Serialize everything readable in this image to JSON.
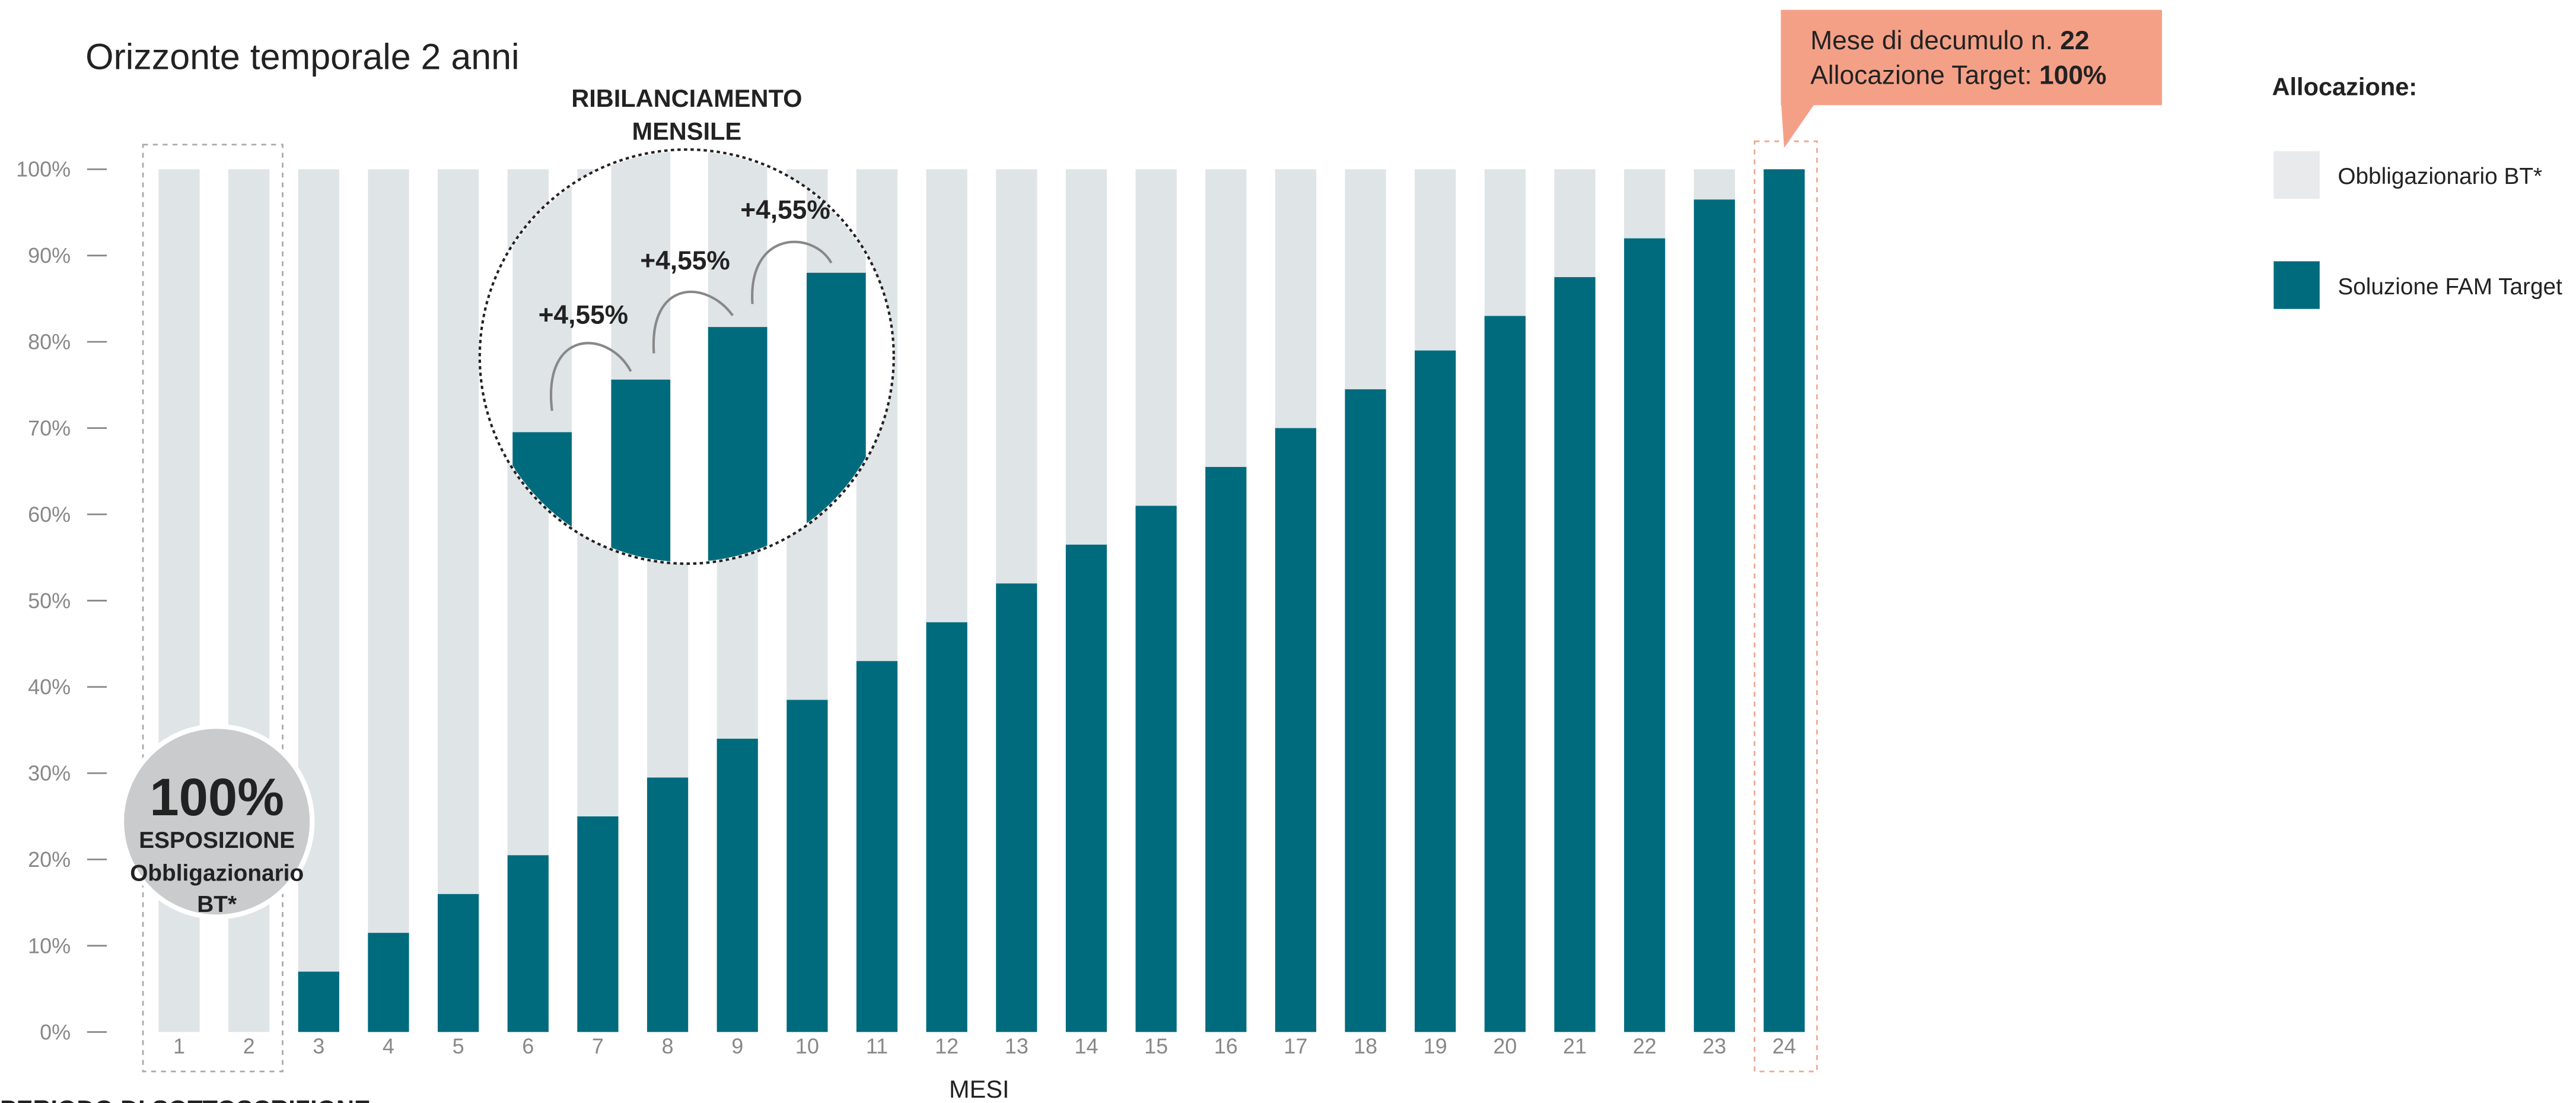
{
  "chart_data": {
    "type": "stacked-bar",
    "subtitle": "Orizzonte temporale 2 anni",
    "x_label": "MESI",
    "footer": "PERIODO DI SOTTOSCRIZIONE",
    "legend_title": "Allocazione:",
    "callout": {
      "line1": "Mese di decumulo n.",
      "month": "22",
      "line2": "Allocazione Target:",
      "target": "100%"
    },
    "zoom_title": [
      "RIBILANCIAMENTO",
      "MENSILE"
    ],
    "zoom_labels": [
      "+4,55%",
      "+4,55%",
      "+4,55%"
    ],
    "badge": {
      "value": "100%",
      "line1": "ESPOSIZIONE",
      "line2": "Obbligazionario",
      "line3": "BT*"
    },
    "categories": [
      "1",
      "2",
      "3",
      "4",
      "5",
      "6",
      "7",
      "8",
      "9",
      "10",
      "11",
      "12",
      "13",
      "14",
      "15",
      "16",
      "17",
      "18",
      "19",
      "20",
      "21",
      "22",
      "23",
      "24"
    ],
    "series": [
      {
        "name": "Soluzione FAM Target",
        "color": "#006b7d",
        "values": [
          0,
          0,
          7,
          11.5,
          16,
          20.5,
          25,
          29.5,
          34,
          38.5,
          43,
          47.5,
          52,
          56.5,
          61,
          65.5,
          70,
          74.5,
          79,
          83,
          87.5,
          92,
          96.5,
          100
        ]
      },
      {
        "name": "Obbligazionario BT*",
        "color": "#dfe4e7",
        "values": [
          100,
          100,
          93,
          88.5,
          84,
          79.5,
          75,
          70.5,
          66,
          61.5,
          57,
          52.5,
          48,
          43.5,
          39,
          34.5,
          30,
          25.5,
          21,
          17,
          12.5,
          8,
          3.5,
          0
        ]
      }
    ],
    "ylim": [
      0,
      100
    ],
    "yticks": [
      {
        "value": 0,
        "label": "0%"
      },
      {
        "value": 10,
        "label": "10%"
      },
      {
        "value": 20,
        "label": "20%"
      },
      {
        "value": 30,
        "label": "30%"
      },
      {
        "value": 40,
        "label": "40%"
      },
      {
        "value": 50,
        "label": "50%"
      },
      {
        "value": 60,
        "label": "60%"
      },
      {
        "value": 70,
        "label": "70%"
      },
      {
        "value": 80,
        "label": "80%"
      },
      {
        "value": 90,
        "label": "90%"
      },
      {
        "value": 100,
        "label": "100%"
      }
    ]
  }
}
